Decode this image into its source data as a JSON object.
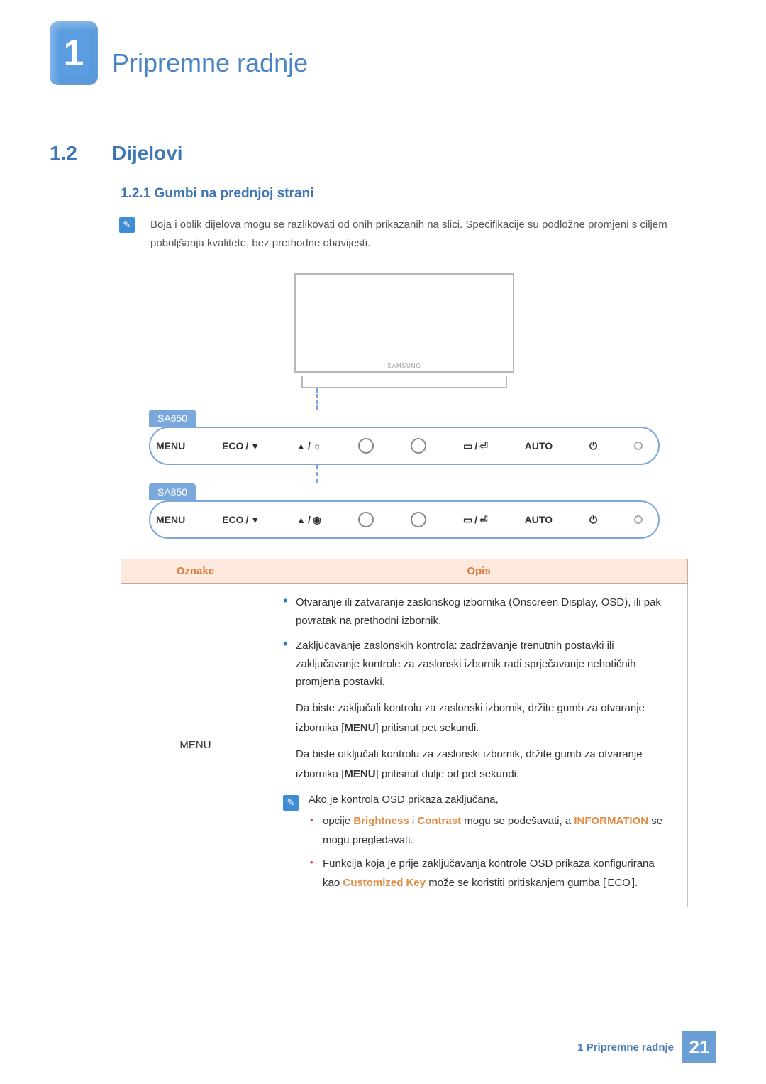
{
  "chapter": {
    "number": "1",
    "title": "Pripremne radnje"
  },
  "section": {
    "number": "1.2",
    "title": "Dijelovi"
  },
  "subsection": {
    "number_title": "1.2.1  Gumbi na prednjoj strani"
  },
  "note": "Boja i oblik dijelova mogu se razlikovati od onih prikazanih na slici. Specifikacije su podložne promjeni s ciljem poboljšanja kvalitete, bez prethodne obavijesti.",
  "figure": {
    "brand": "SAMSUNG",
    "model_a": "SA650",
    "model_b": "SA850",
    "btn_menu": "MENU",
    "btn_eco": "ECO",
    "btn_auto": "AUTO"
  },
  "table": {
    "header_oznake": "Oznake",
    "header_opis": "Opis",
    "row1": {
      "label": "MENU",
      "b1": "Otvaranje ili zatvaranje zaslonskog izbornika (Onscreen Display, OSD), ili pak povratak na prethodni izbornik.",
      "b2": "Zaključavanje zaslonskih kontrola: zadržavanje trenutnih postavki ili zaključavanje kontrole za zaslonski izbornik radi sprječavanje nehotičnih promjena postavki.",
      "p1a": "Da biste zaključali kontrolu za zaslonski izbornik, držite gumb za otvaranje izbornika [",
      "p1b": "] pritisnut pet sekundi.",
      "p2a": "Da biste otključali kontrolu za zaslonski izbornik, držite gumb za otvaranje izbornika [",
      "p2b": "] pritisnut dulje od pet sekundi.",
      "menu_ref": "MENU",
      "inner_intro": "Ako je kontrola OSD prikaza zaključana,",
      "inner_1a": "opcije ",
      "inner_1_brightness": "Brightness",
      "inner_1_mid": " i ",
      "inner_1_contrast": "Contrast",
      "inner_1b": " mogu se podešavati, a ",
      "inner_1_info": "INFORMATION",
      "inner_1c": " se mogu pregledavati.",
      "inner_2a": "Funkcija koja je prije zaključavanja kontrole OSD prikaza konfigurirana kao ",
      "inner_2_ck": "Customized Key",
      "inner_2b": " može se koristiti pritiskanjem gumba [",
      "inner_2_eco": "ECO",
      "inner_2c": "]."
    }
  },
  "footer": {
    "text": "1 Pripremne radnje",
    "page": "21"
  },
  "colors": {
    "accent": "#4a84c4",
    "badge": "#5a9de0",
    "model_bg": "#7aa8dc",
    "table_header_bg": "#fde9dd",
    "table_header_fg": "#d97a3a",
    "highlight": "#e28a3f"
  }
}
